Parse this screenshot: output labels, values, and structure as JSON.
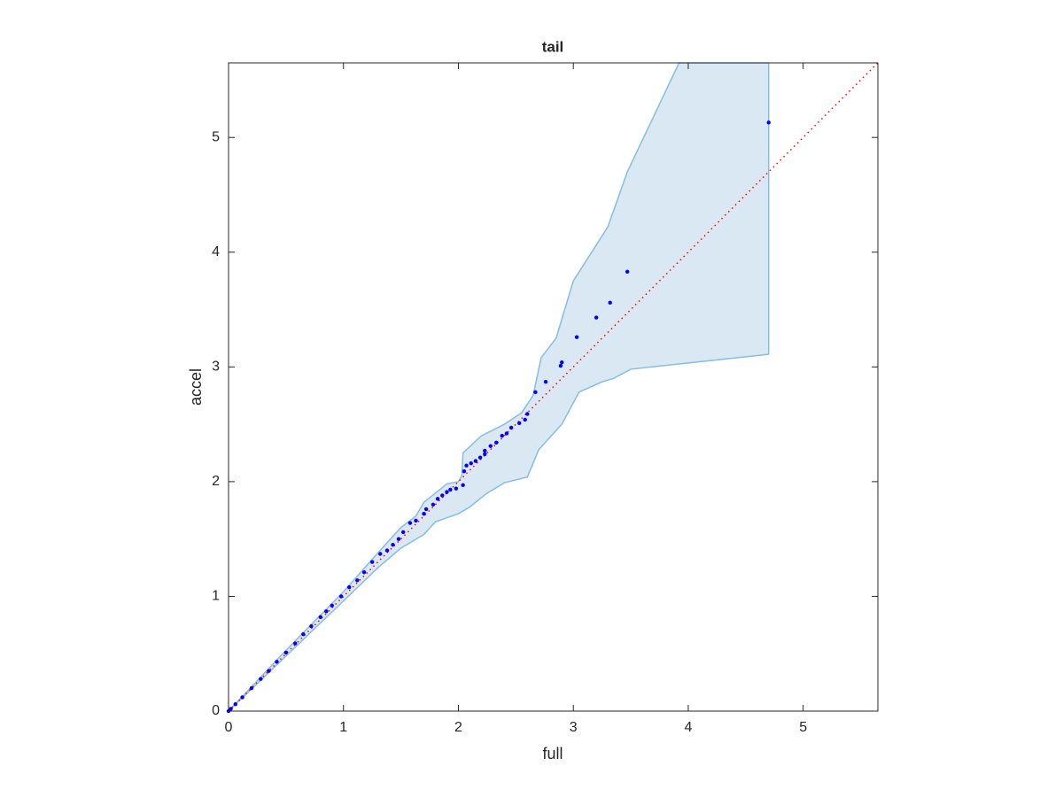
{
  "chart_data": {
    "type": "scatter",
    "title": "tail",
    "xlabel": "full",
    "ylabel": "accel",
    "xlim": [
      0,
      5.65
    ],
    "ylim": [
      0,
      5.65
    ],
    "xticks": [
      0,
      1,
      2,
      3,
      4,
      5
    ],
    "yticks": [
      0,
      1,
      2,
      3,
      4,
      5
    ],
    "box": true,
    "points": {
      "color": "#0000ff",
      "x": [
        4.7,
        3.47,
        3.32,
        3.2,
        3.03,
        2.9,
        2.89,
        2.76,
        2.67,
        2.6,
        2.58,
        2.53,
        2.46,
        2.42,
        2.38,
        2.33,
        2.28,
        2.23,
        2.23,
        2.19,
        2.15,
        2.11,
        2.07,
        2.05,
        2.04,
        1.98,
        1.93,
        1.9,
        1.86,
        1.82,
        1.78,
        1.72,
        1.7,
        1.63,
        1.58,
        1.52,
        1.48,
        1.43,
        1.38,
        1.32,
        1.25,
        1.18,
        1.12,
        1.05,
        0.98,
        0.9,
        0.85,
        0.8,
        0.72,
        0.65,
        0.58,
        0.5,
        0.42,
        0.35,
        0.28,
        0.2,
        0.12,
        0.06,
        0.02,
        0
      ],
      "values": [
        5.13,
        3.83,
        3.56,
        3.43,
        3.26,
        3.04,
        3.01,
        2.87,
        2.78,
        2.59,
        2.54,
        2.51,
        2.47,
        2.42,
        2.4,
        2.34,
        2.31,
        2.27,
        2.24,
        2.21,
        2.18,
        2.16,
        2.14,
        2.09,
        1.97,
        1.94,
        1.93,
        1.91,
        1.88,
        1.85,
        1.8,
        1.76,
        1.72,
        1.66,
        1.64,
        1.56,
        1.5,
        1.45,
        1.4,
        1.37,
        1.3,
        1.21,
        1.14,
        1.08,
        1.0,
        0.92,
        0.87,
        0.82,
        0.74,
        0.67,
        0.59,
        0.51,
        0.43,
        0.35,
        0.28,
        0.2,
        0.12,
        0.06,
        0.02,
        0
      ]
    },
    "band": {
      "fill": "#d9e8f3",
      "edge_color": "#86bde0",
      "upper": {
        "x": [
          0,
          0.5,
          1.0,
          1.3,
          1.5,
          1.63,
          1.7,
          1.8,
          1.9,
          2.0,
          2.03,
          2.04,
          2.2,
          2.4,
          2.55,
          2.65,
          2.72,
          2.85,
          3.0,
          3.3,
          3.47,
          3.92,
          4.7
        ],
        "values": [
          0,
          0.53,
          1.04,
          1.38,
          1.6,
          1.7,
          1.82,
          1.9,
          1.98,
          2.0,
          2.05,
          2.25,
          2.4,
          2.5,
          2.6,
          2.75,
          3.08,
          3.25,
          3.75,
          4.22,
          4.7,
          5.65,
          5.65
        ]
      },
      "lower": {
        "x": [
          0,
          0.5,
          1.0,
          1.3,
          1.5,
          1.7,
          1.8,
          2.0,
          2.1,
          2.25,
          2.4,
          2.6,
          2.7,
          2.9,
          3.05,
          3.25,
          3.35,
          3.5,
          4.7
        ],
        "values": [
          0,
          0.48,
          0.96,
          1.25,
          1.42,
          1.54,
          1.65,
          1.72,
          1.78,
          1.9,
          1.99,
          2.04,
          2.28,
          2.5,
          2.78,
          2.87,
          2.9,
          2.98,
          3.11
        ]
      }
    },
    "reference_line": {
      "color": "#ff0000",
      "style": "dotted",
      "x": [
        0,
        5.65
      ],
      "values": [
        0,
        5.65
      ]
    }
  }
}
